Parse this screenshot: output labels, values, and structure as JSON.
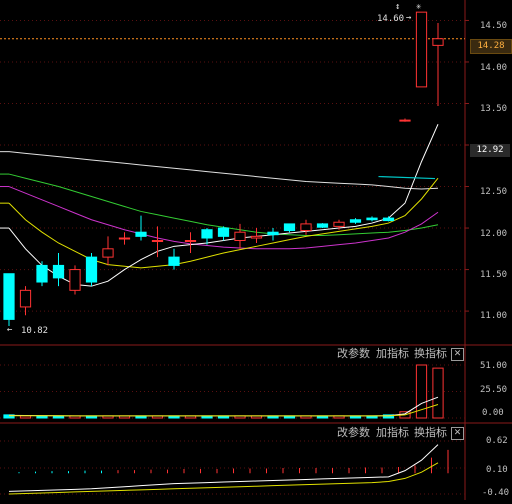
{
  "price_panel": {
    "axis_ticks": [
      "14.50",
      "14.00",
      "13.50",
      "12.50",
      "12.00",
      "11.50",
      "11.00"
    ],
    "current_price_tag": "14.28",
    "last_close_tag": "12.92",
    "high_annotation": "14.60",
    "low_annotation": "10.82",
    "top_markers": [
      "↕",
      "✳"
    ]
  },
  "volume_panel": {
    "buttons": [
      "改参数",
      "加指标",
      "换指标"
    ],
    "close_icon": "✕",
    "axis_ticks": [
      "51.00",
      "25.50",
      "0.00"
    ]
  },
  "macd_panel": {
    "buttons": [
      "改参数",
      "加指标",
      "换指标"
    ],
    "close_icon": "✕",
    "axis_ticks": [
      "0.62",
      "0.10",
      "-0.40"
    ]
  },
  "chart_data": {
    "type": "candlestick",
    "ylim": [
      10.7,
      14.65
    ],
    "candles": [
      {
        "o": 11.45,
        "h": 11.45,
        "l": 10.82,
        "c": 10.9
      },
      {
        "o": 11.05,
        "h": 11.3,
        "l": 10.95,
        "c": 11.25
      },
      {
        "o": 11.55,
        "h": 11.6,
        "l": 11.3,
        "c": 11.35
      },
      {
        "o": 11.55,
        "h": 11.7,
        "l": 11.3,
        "c": 11.4
      },
      {
        "o": 11.25,
        "h": 11.55,
        "l": 11.2,
        "c": 11.5
      },
      {
        "o": 11.65,
        "h": 11.7,
        "l": 11.3,
        "c": 11.35
      },
      {
        "o": 11.65,
        "h": 11.9,
        "l": 11.55,
        "c": 11.75
      },
      {
        "o": 11.88,
        "h": 11.95,
        "l": 11.8,
        "c": 11.88
      },
      {
        "o": 11.95,
        "h": 12.15,
        "l": 11.85,
        "c": 11.9
      },
      {
        "o": 11.85,
        "h": 12.02,
        "l": 11.65,
        "c": 11.85
      },
      {
        "o": 11.65,
        "h": 11.75,
        "l": 11.5,
        "c": 11.55
      },
      {
        "o": 11.85,
        "h": 11.95,
        "l": 11.7,
        "c": 11.85
      },
      {
        "o": 11.98,
        "h": 12.0,
        "l": 11.8,
        "c": 11.88
      },
      {
        "o": 12.0,
        "h": 12.02,
        "l": 11.85,
        "c": 11.9
      },
      {
        "o": 11.85,
        "h": 12.05,
        "l": 11.75,
        "c": 11.95
      },
      {
        "o": 11.88,
        "h": 12.0,
        "l": 11.82,
        "c": 11.9
      },
      {
        "o": 11.95,
        "h": 12.0,
        "l": 11.85,
        "c": 11.92
      },
      {
        "o": 12.05,
        "h": 12.05,
        "l": 11.95,
        "c": 11.97
      },
      {
        "o": 11.97,
        "h": 12.1,
        "l": 11.92,
        "c": 12.05
      },
      {
        "o": 12.05,
        "h": 12.06,
        "l": 12.0,
        "c": 12.01
      },
      {
        "o": 12.02,
        "h": 12.1,
        "l": 11.98,
        "c": 12.07
      },
      {
        "o": 12.1,
        "h": 12.12,
        "l": 12.05,
        "c": 12.07
      },
      {
        "o": 12.12,
        "h": 12.14,
        "l": 12.08,
        "c": 12.1
      },
      {
        "o": 12.12,
        "h": 12.14,
        "l": 12.08,
        "c": 12.09
      },
      {
        "o": 13.3,
        "h": 13.32,
        "l": 13.28,
        "c": 13.3
      },
      {
        "o": 13.7,
        "h": 14.6,
        "l": 13.7,
        "c": 14.6
      },
      {
        "o": 14.2,
        "h": 14.47,
        "l": 13.47,
        "c": 14.28
      }
    ],
    "ma_series": [
      {
        "color": "#e0e0e0",
        "values": [
          12.92,
          12.9,
          12.88,
          12.86,
          12.84,
          12.82,
          12.8,
          12.78,
          12.76,
          12.74,
          12.72,
          12.7,
          12.68,
          12.66,
          12.64,
          12.62,
          12.6,
          12.58,
          12.56,
          12.55,
          12.54,
          12.53,
          12.52,
          12.5,
          12.48,
          12.47,
          12.48
        ]
      },
      {
        "color": "#33cc33",
        "values": [
          12.65,
          12.6,
          12.55,
          12.5,
          12.44,
          12.38,
          12.32,
          12.26,
          12.2,
          12.16,
          12.12,
          12.08,
          12.04,
          12.01,
          11.98,
          11.95,
          11.93,
          11.92,
          11.91,
          11.91,
          11.92,
          11.93,
          11.94,
          11.95,
          11.97,
          12.0,
          12.04
        ]
      },
      {
        "color": "#cc33cc",
        "values": [
          12.5,
          12.42,
          12.34,
          12.26,
          12.18,
          12.1,
          12.04,
          11.98,
          11.93,
          11.88,
          11.84,
          11.81,
          11.79,
          11.77,
          11.76,
          11.75,
          11.75,
          11.75,
          11.76,
          11.78,
          11.8,
          11.82,
          11.85,
          11.88,
          11.95,
          12.05,
          12.19
        ]
      },
      {
        "color": "#e0e000",
        "values": [
          12.3,
          12.1,
          11.95,
          11.82,
          11.72,
          11.62,
          11.56,
          11.54,
          11.52,
          11.54,
          11.56,
          11.6,
          11.65,
          11.7,
          11.74,
          11.78,
          11.82,
          11.86,
          11.9,
          11.93,
          11.96,
          11.99,
          12.02,
          12.06,
          12.15,
          12.35,
          12.6
        ]
      },
      {
        "color": "#ffffff",
        "values": [
          12.0,
          11.75,
          11.55,
          11.42,
          11.32,
          11.3,
          11.36,
          11.5,
          11.62,
          11.72,
          11.78,
          11.8,
          11.82,
          11.85,
          11.88,
          11.9,
          11.92,
          11.94,
          11.96,
          11.98,
          12.0,
          12.02,
          12.06,
          12.12,
          12.3,
          12.8,
          13.25
        ]
      }
    ],
    "reference_lines": [
      {
        "color": "#00c8c8",
        "value": 12.62,
        "from_index": 23
      }
    ],
    "volume": {
      "ylim": [
        0,
        51
      ],
      "values": [
        3,
        2,
        2,
        2,
        2,
        2,
        2,
        2,
        2,
        2,
        2,
        2,
        2,
        2,
        2,
        2,
        2,
        2,
        2,
        2,
        2,
        2,
        2,
        3,
        6,
        51,
        48
      ],
      "ma_values": [
        2.5,
        2.4,
        2.3,
        2.2,
        2.1,
        2.1,
        2.0,
        2.0,
        2.0,
        2.0,
        2.0,
        2.0,
        2.0,
        2.0,
        2.0,
        2.0,
        2.0,
        2.0,
        2.0,
        2.0,
        2.0,
        2.0,
        2.0,
        2.2,
        4,
        14,
        20
      ],
      "ma2_values": [
        2.2,
        2.2,
        2.2,
        2.2,
        2.1,
        2.1,
        2.1,
        2.0,
        2.0,
        2.0,
        2.0,
        2.0,
        2.0,
        2.0,
        2.0,
        2.0,
        2.0,
        2.0,
        2.0,
        2.0,
        2.0,
        2.0,
        2.0,
        2.1,
        3,
        8,
        13
      ]
    },
    "macd": {
      "ylim": [
        -0.4,
        0.62
      ],
      "hist": [
        0.02,
        0.03,
        0.04,
        0.04,
        0.05,
        0.05,
        0.06,
        0.06,
        0.07,
        0.07,
        0.08,
        0.08,
        0.08,
        0.09,
        0.09,
        0.09,
        0.1,
        0.1,
        0.1,
        0.1,
        0.1,
        0.11,
        0.11,
        0.12,
        0.15,
        0.3,
        0.45
      ],
      "dif": [
        -0.35,
        -0.34,
        -0.33,
        -0.32,
        -0.31,
        -0.3,
        -0.28,
        -0.26,
        -0.24,
        -0.22,
        -0.2,
        -0.19,
        -0.18,
        -0.17,
        -0.16,
        -0.15,
        -0.14,
        -0.13,
        -0.12,
        -0.11,
        -0.1,
        -0.09,
        -0.08,
        -0.07,
        0.05,
        0.25,
        0.55
      ],
      "dea": [
        -0.4,
        -0.39,
        -0.38,
        -0.37,
        -0.36,
        -0.35,
        -0.34,
        -0.33,
        -0.32,
        -0.31,
        -0.3,
        -0.29,
        -0.28,
        -0.27,
        -0.26,
        -0.25,
        -0.24,
        -0.23,
        -0.22,
        -0.21,
        -0.2,
        -0.19,
        -0.18,
        -0.16,
        -0.1,
        0.02,
        0.2
      ]
    }
  }
}
